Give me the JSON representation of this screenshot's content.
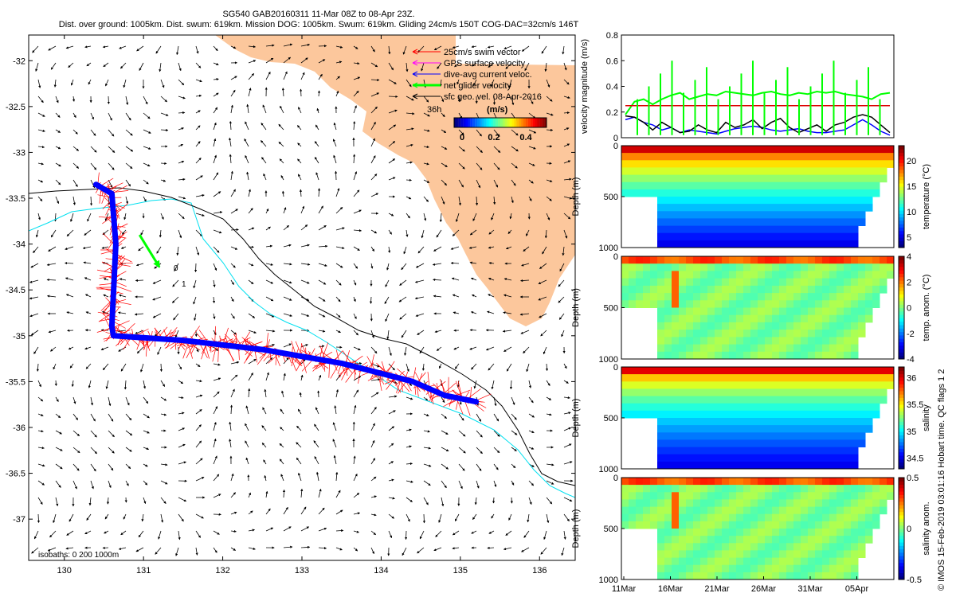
{
  "title_lines": [
    "SG540 GAB20160311 11-Mar 08Z to 08-Apr 23Z.",
    "Dist. over ground: 1005km. Dist. swum: 619km. Mission DOG: 1005km. Swum: 619km. Gliding 24cm/s 150T COG-DAC=32cm/s 146T"
  ],
  "colors": {
    "land": "#fcc79c",
    "swim_vector": "#ff0000",
    "gps_velocity": "#ff00ff",
    "dac_current": "#0000ff",
    "net_glider": "#00ff00",
    "sfc_geo": "#000000",
    "isobath_200": "#00e0f0",
    "isobath_1000": "#000000",
    "mission_threshold": "#dd0000"
  },
  "legend": {
    "items": [
      {
        "label": "25cm/s swim vector",
        "color_key": "swim_vector"
      },
      {
        "label": "GPS surface velocity",
        "color_key": "gps_velocity"
      },
      {
        "label": "dive-avg current veloc.",
        "color_key": "dac_current"
      },
      {
        "label": "net glider velocity",
        "color_key": "net_glider"
      },
      {
        "label": "sfc geo. vel. 08-Apr-2016",
        "color_key": "sfc_geo"
      }
    ],
    "time_label": "36h",
    "colorbar_unit": "(m/s)",
    "colorbar_ticks": [
      "0",
      "0.2",
      "0.4"
    ]
  },
  "isobaths_label": "isobaths: 0   200   1000m",
  "net_markers": [
    "0",
    "1"
  ],
  "credit": "© IMOS 15-Feb-2019 03:01:16 Hobart time. QC flags 1 2",
  "chart_data": [
    {
      "type": "map",
      "name": "glider track map",
      "xticks": [
        "130",
        "131",
        "132",
        "133",
        "134",
        "135",
        "136"
      ],
      "yticks": [
        "-32",
        "-32.5",
        "-33",
        "-33.5",
        "-34",
        "-34.5",
        "-35",
        "-35.5",
        "-36",
        "-36.5",
        "-37"
      ],
      "xlim": [
        129.55,
        136.45
      ],
      "ylim": [
        -37.45,
        -31.72
      ],
      "track": [
        [
          130.4,
          -33.35
        ],
        [
          130.6,
          -33.45
        ],
        [
          130.65,
          -34.0
        ],
        [
          130.6,
          -34.9
        ],
        [
          130.62,
          -35.0
        ],
        [
          131.5,
          -35.05
        ],
        [
          132.5,
          -35.15
        ],
        [
          133.5,
          -35.3
        ],
        [
          134.4,
          -35.5
        ],
        [
          134.8,
          -35.65
        ],
        [
          135.2,
          -35.72
        ]
      ],
      "net_glider_velocity": {
        "from": [
          130.95,
          -33.9
        ],
        "to": [
          131.2,
          -34.25
        ]
      }
    },
    {
      "type": "line",
      "name": "velocity magnitude",
      "ylabel": "velocity magnitude (m/s)",
      "ylim": [
        0,
        0.8
      ],
      "yticks": [
        "0",
        "0.2",
        "0.4",
        "0.6",
        "0.8"
      ],
      "xlim": [
        "10-Mar",
        "09-Apr"
      ],
      "series": [
        {
          "color_key": "net_glider",
          "values": [
            0.18,
            0.28,
            0.3,
            0.26,
            0.3,
            0.33,
            0.35,
            0.3,
            0.32,
            0.34,
            0.33,
            0.36,
            0.35,
            0.34,
            0.33,
            0.35,
            0.36,
            0.34,
            0.33,
            0.35,
            0.34,
            0.36,
            0.35,
            0.36,
            0.34,
            0.33,
            0.32,
            0.3,
            0.34,
            0.35
          ]
        },
        {
          "color_key": "dac_current",
          "values": [
            0.14,
            0.16,
            0.12,
            0.1,
            0.06,
            0.08,
            0.04,
            0.06,
            0.05,
            0.04,
            0.03,
            0.05,
            0.07,
            0.08,
            0.09,
            0.08,
            0.06,
            0.05,
            0.06,
            0.07,
            0.05,
            0.04,
            0.04,
            0.05,
            0.06,
            0.1,
            0.14,
            0.1,
            0.05,
            0.02
          ]
        },
        {
          "color_key": "sfc_geo",
          "values": [
            0.17,
            0.16,
            0.12,
            0.06,
            0.12,
            0.08,
            0.04,
            0.05,
            0.1,
            0.06,
            0.04,
            0.12,
            0.08,
            0.1,
            0.14,
            0.07,
            0.12,
            0.15,
            0.08,
            0.04,
            0.07,
            0.1,
            0.05,
            0.1,
            0.12,
            0.16,
            0.18,
            0.16,
            0.1,
            0.04
          ]
        },
        {
          "color_key": "mission_threshold",
          "values": [
            0.25,
            0.25
          ]
        }
      ]
    },
    {
      "type": "heatmap",
      "name": "temperature section",
      "ylabel": "Depth (m)",
      "yticks": [
        "0",
        "500",
        "1000"
      ],
      "ylim": [
        1000,
        0
      ],
      "colorbar_label": "temperature (°C)",
      "colorbar_ticks": [
        "5",
        "10",
        "15",
        "20"
      ],
      "colorbar_range": [
        3,
        23
      ]
    },
    {
      "type": "heatmap",
      "name": "temperature anomaly section",
      "ylabel": "Depth (m)",
      "yticks": [
        "0",
        "500",
        "1000"
      ],
      "ylim": [
        1000,
        0
      ],
      "colorbar_label": "temp. anom. (°C)",
      "colorbar_ticks": [
        "-4",
        "-2",
        "0",
        "2",
        "4"
      ],
      "colorbar_range": [
        -4,
        4
      ]
    },
    {
      "type": "heatmap",
      "name": "salinity section",
      "ylabel": "Depth (m)",
      "yticks": [
        "0",
        "500",
        "1000"
      ],
      "ylim": [
        1000,
        0
      ],
      "colorbar_label": "salinity",
      "colorbar_ticks": [
        "34.5",
        "35",
        "35.5",
        "36"
      ],
      "colorbar_range": [
        34.3,
        36.2
      ]
    },
    {
      "type": "heatmap",
      "name": "salinity anomaly section",
      "ylabel": "Depth (m)",
      "yticks": [
        "0",
        "500",
        "1000"
      ],
      "ylim": [
        1000,
        0
      ],
      "colorbar_label": "salinity anom.",
      "colorbar_ticks": [
        "-0.5",
        "0",
        "0.5"
      ],
      "colorbar_range": [
        -0.5,
        0.5
      ]
    }
  ],
  "time_axis_ticks": [
    "11Mar",
    "16Mar",
    "21Mar",
    "26Mar",
    "31Mar",
    "05Apr"
  ]
}
